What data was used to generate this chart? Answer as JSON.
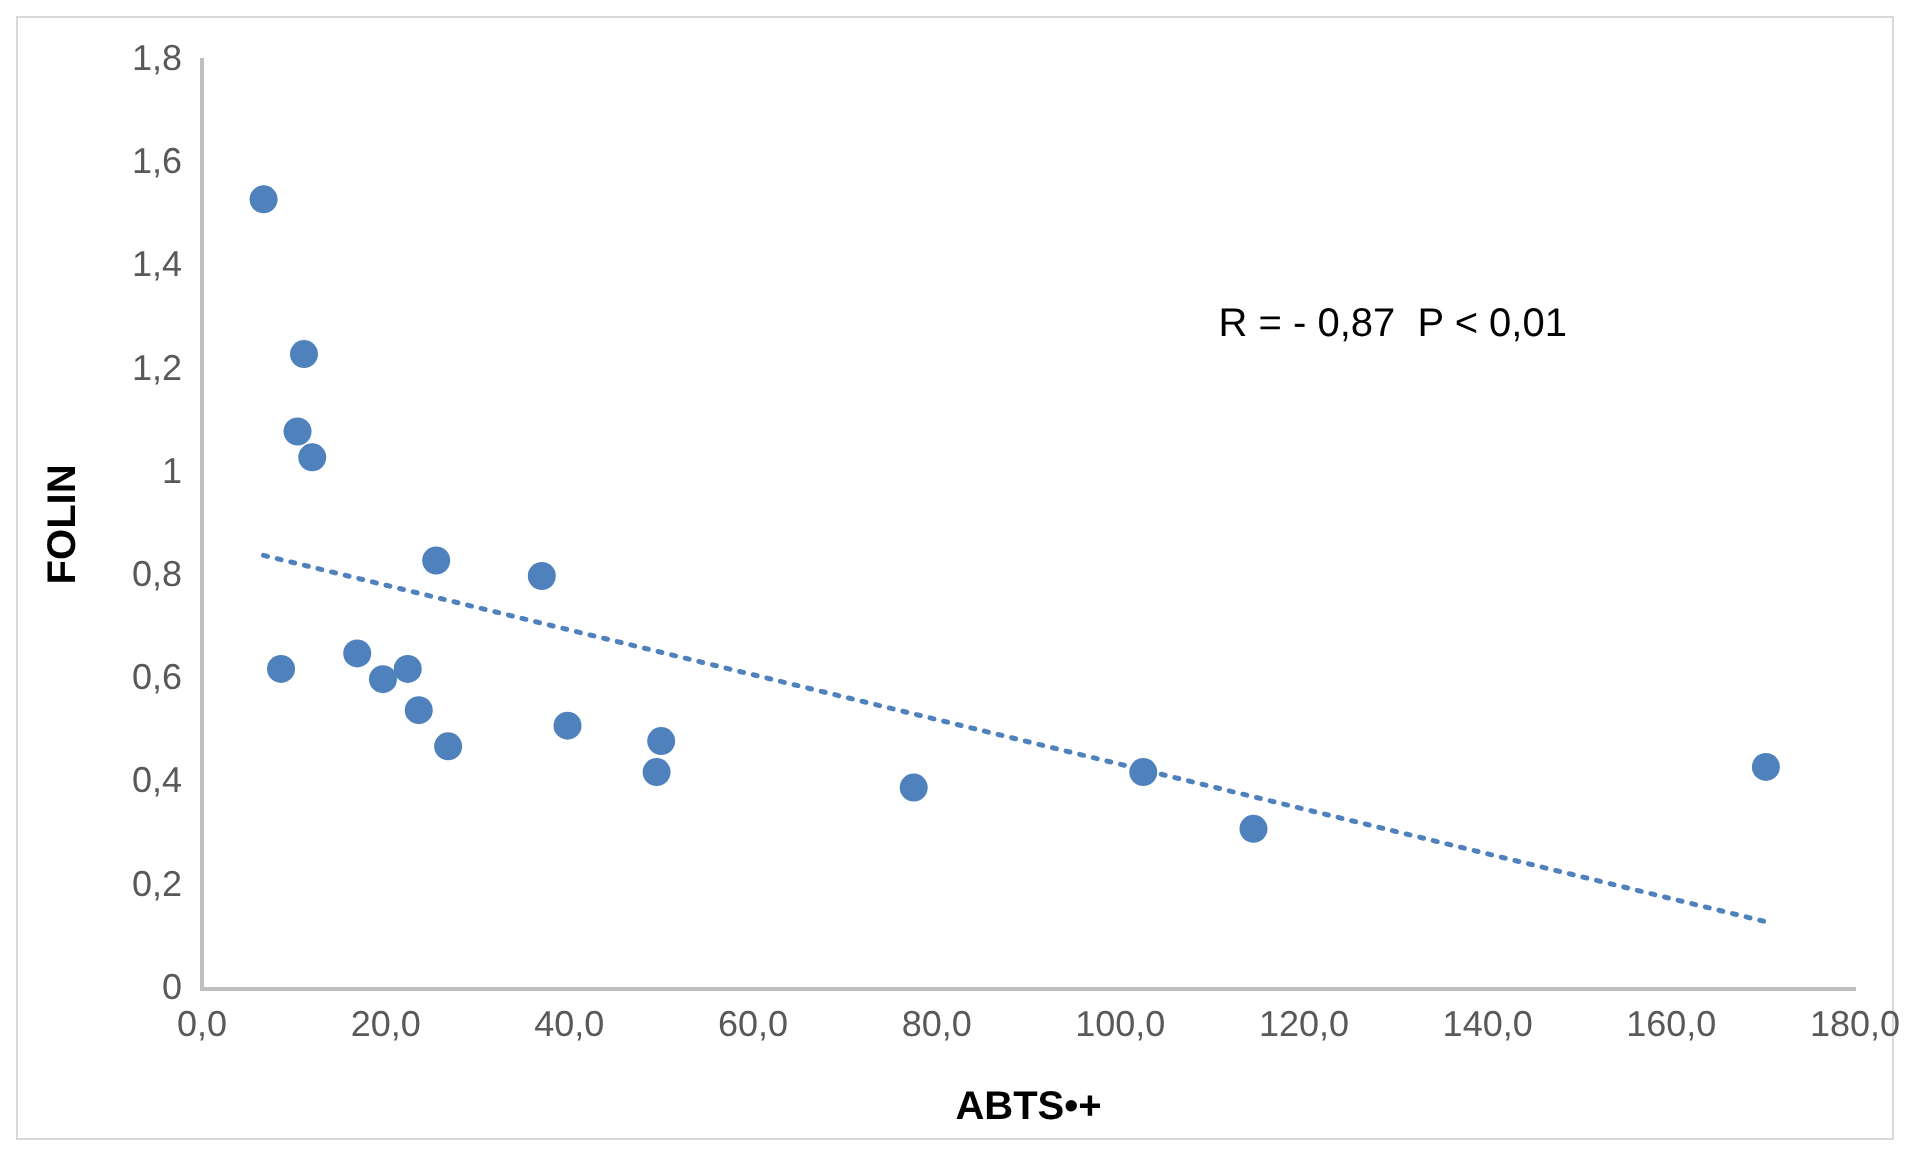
{
  "chart_data": {
    "type": "scatter",
    "xlabel": "ABTS•+",
    "ylabel": "FOLIN",
    "annotations": [
      "R = - 0,87  P < 0,01"
    ],
    "x": [
      6.7,
      11.1,
      10.4,
      12.0,
      8.6,
      16.9,
      19.7,
      22.4,
      23.6,
      26.8,
      25.5,
      37.0,
      39.8,
      50.0,
      49.5,
      77.5,
      102.5,
      114.5,
      170.3
    ],
    "series": [
      {
        "color": "#4f81bd",
        "marker": "circle",
        "values": [
          1.53,
          1.23,
          1.08,
          1.03,
          0.62,
          0.65,
          0.6,
          0.62,
          0.54,
          0.47,
          0.83,
          0.8,
          0.51,
          0.48,
          0.42,
          0.39,
          0.42,
          0.31,
          0.43
        ]
      },
      {
        "type": "line",
        "color": "#4f81bd",
        "line_style": "dotted",
        "marker": "none",
        "x": [
          6.7,
          170.3
        ],
        "values": [
          0.84,
          0.13
        ]
      }
    ],
    "xlim": [
      0,
      180
    ],
    "ylim": [
      0,
      1.8
    ],
    "xticks": [
      {
        "value": 0,
        "label": "0,0"
      },
      {
        "value": 20,
        "label": "20,0"
      },
      {
        "value": 40,
        "label": "40,0"
      },
      {
        "value": 60,
        "label": "60,0"
      },
      {
        "value": 80,
        "label": "80,0"
      },
      {
        "value": 100,
        "label": "100,0"
      },
      {
        "value": 120,
        "label": "120,0"
      },
      {
        "value": 140,
        "label": "140,0"
      },
      {
        "value": 160,
        "label": "160,0"
      },
      {
        "value": 180,
        "label": "180,0"
      }
    ],
    "yticks": [
      0,
      {
        "value": 0.2,
        "label": "0,2"
      },
      {
        "value": 0.4,
        "label": "0,4"
      },
      {
        "value": 0.6,
        "label": "0,6"
      },
      {
        "value": 0.8,
        "label": "0,8"
      },
      1,
      {
        "value": 1.2,
        "label": "1,2"
      },
      {
        "value": 1.4,
        "label": "1,4"
      },
      {
        "value": 1.6,
        "label": "1,6"
      },
      {
        "value": 1.8,
        "label": "1,8"
      }
    ],
    "grid": false,
    "legend": false
  }
}
